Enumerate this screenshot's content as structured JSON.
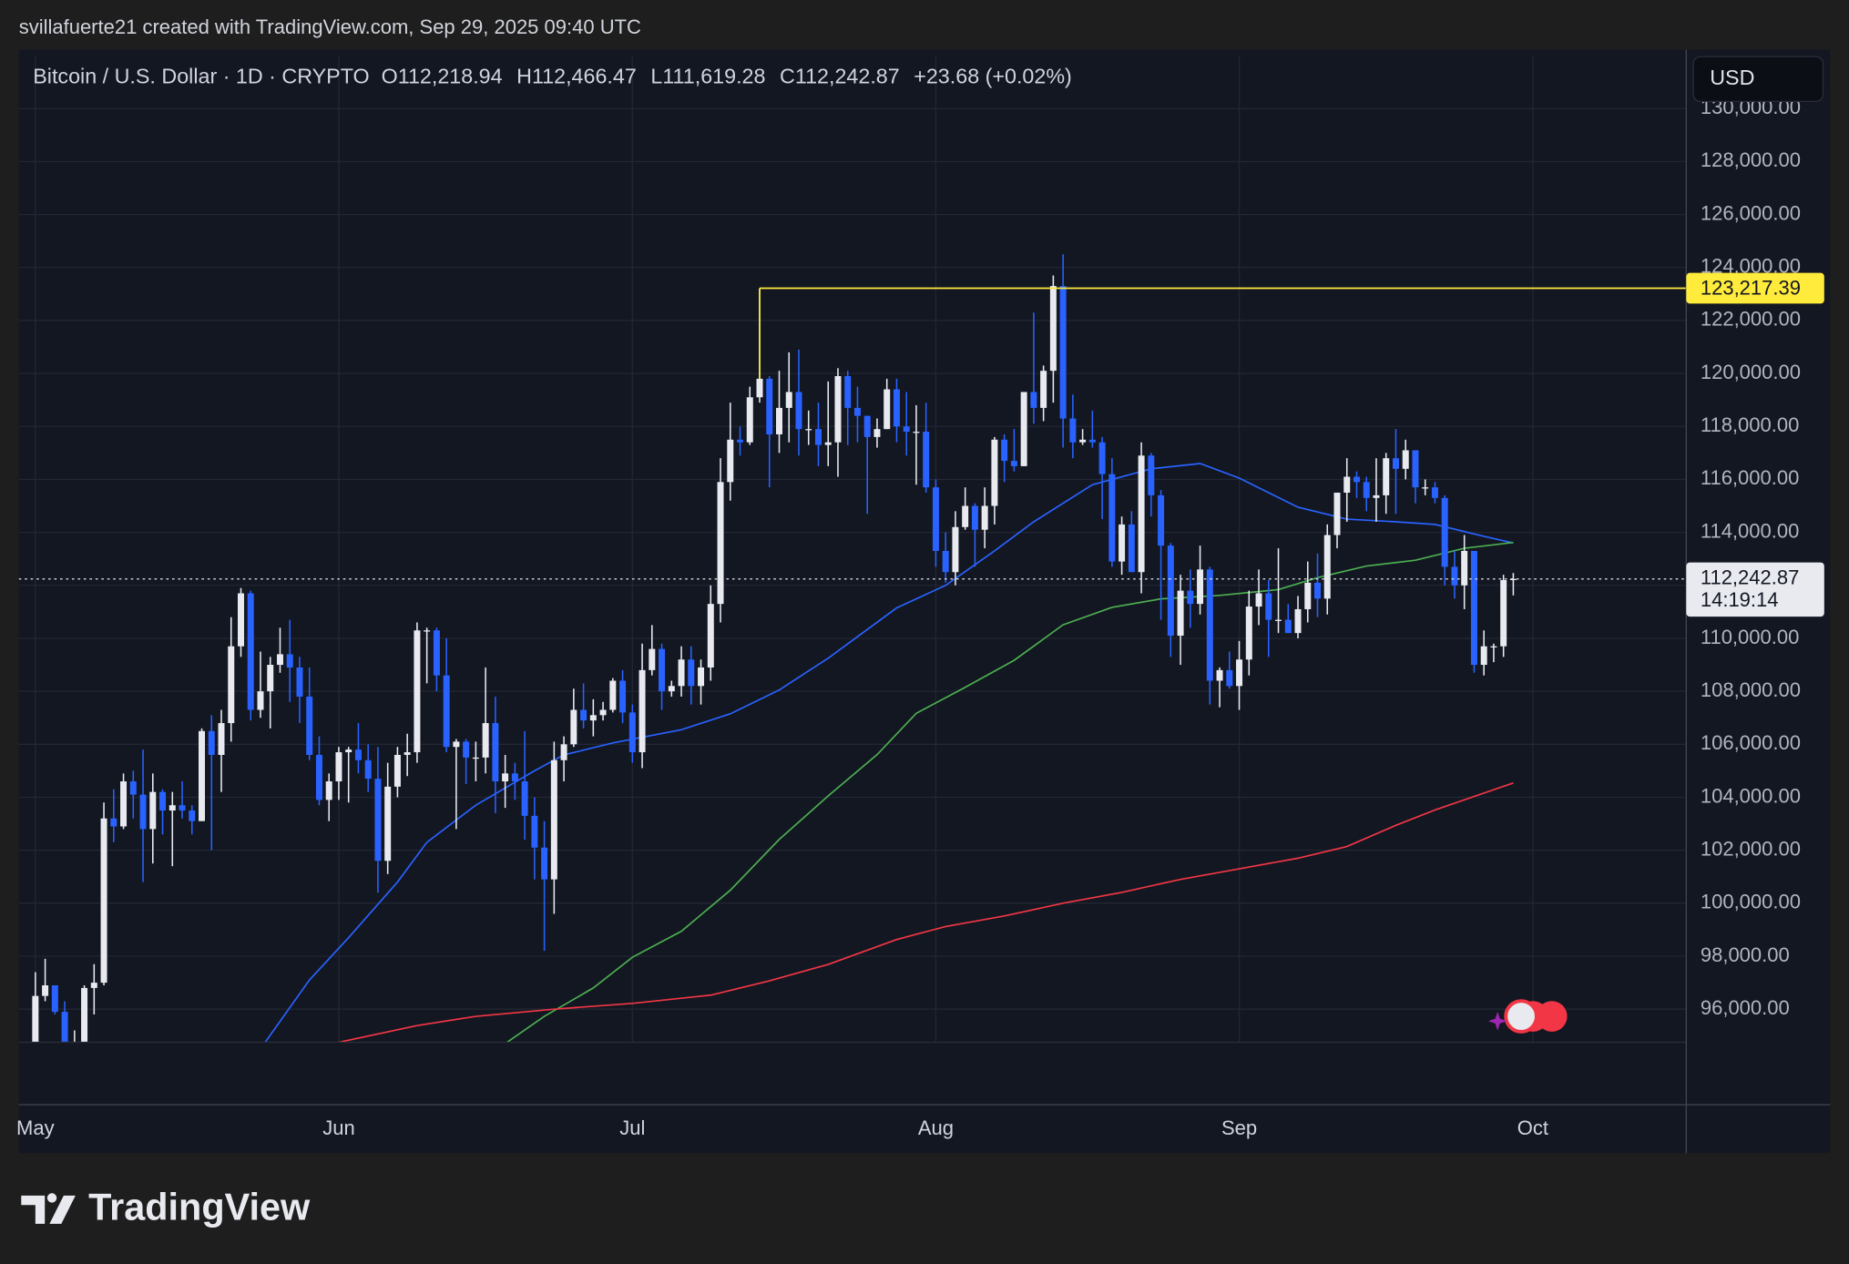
{
  "header": {
    "credit": "svillafuerte21 created with TradingView.com, Sep 29, 2025 09:40 UTC"
  },
  "legend": {
    "symbol": "Bitcoin / U.S. Dollar · 1D · CRYPTO",
    "open": "O112,218.94",
    "high": "H112,466.47",
    "low": "L111,619.28",
    "close": "C112,242.87",
    "change": "+23.68 (+0.02%)"
  },
  "currency_button": "USD",
  "footer": {
    "brand": "TradingView"
  },
  "chart_data": {
    "type": "candlestick",
    "categories": [
      "May",
      null,
      null,
      null,
      null,
      null,
      null,
      null,
      null,
      null,
      null,
      null,
      null,
      null,
      null,
      null,
      null,
      null,
      null,
      null,
      null,
      null,
      null,
      null,
      null,
      null,
      null,
      null,
      null,
      null,
      null,
      "Jun",
      null,
      null,
      null,
      null,
      null,
      null,
      null,
      null,
      null,
      null,
      null,
      null,
      null,
      null,
      null,
      null,
      null,
      null,
      null,
      null,
      null,
      null,
      null,
      null,
      null,
      null,
      null,
      null,
      null,
      "Jul",
      null,
      null,
      null,
      null,
      null,
      null,
      null,
      null,
      null,
      null,
      null,
      null,
      null,
      null,
      null,
      null,
      null,
      null,
      null,
      null,
      null,
      null,
      null,
      null,
      null,
      null,
      null,
      null,
      null,
      null,
      "Aug",
      null,
      null,
      null,
      null,
      null,
      null,
      null,
      null,
      null,
      null,
      null,
      null,
      null,
      null,
      null,
      null,
      null,
      null,
      null,
      null,
      null,
      null,
      null,
      null,
      null,
      null,
      null,
      null,
      null,
      null,
      "Sep",
      null,
      null,
      null,
      null,
      null,
      null,
      null,
      null,
      null,
      null,
      null,
      null,
      null,
      null,
      null,
      null,
      null,
      null,
      null,
      null,
      null,
      null,
      null,
      null,
      null,
      null,
      null,
      null,
      null,
      "Oct"
    ],
    "open": [
      94200,
      96500,
      96900,
      95900,
      94300,
      94700,
      96800,
      97000,
      103200,
      102900,
      104600,
      104100,
      102800,
      104200,
      103500,
      103700,
      103500,
      103100,
      106500,
      105600,
      106800,
      109700,
      111700,
      107300,
      108000,
      109000,
      109400,
      108900,
      107800,
      105600,
      103900,
      104600,
      105700,
      105800,
      105400,
      104700,
      101600,
      104400,
      105600,
      105700,
      110300,
      110300,
      108600,
      105900,
      106100,
      105500,
      105500,
      106800,
      104600,
      104900,
      104600,
      103300,
      102100,
      100900,
      105400,
      106000,
      107300,
      106900,
      107100,
      107300,
      108400,
      107200,
      105700,
      108800,
      109600,
      108000,
      108200,
      109200,
      108200,
      108900,
      111300,
      115900,
      117500,
      117400,
      119100,
      119800,
      117700,
      118700,
      119300,
      117900,
      117900,
      117300,
      117400,
      119900,
      118700,
      118400,
      117600,
      117900,
      119400,
      118000,
      117800,
      117800,
      115700,
      113300,
      112500,
      114200,
      115000,
      114100,
      115000,
      117500,
      116700,
      116500,
      119300,
      118700,
      120100,
      123300,
      118300,
      117400,
      117500,
      117400,
      116200,
      112900,
      114300,
      112500,
      116900,
      115400,
      113500,
      110100,
      111800,
      111300,
      112600,
      108400,
      108800,
      108200,
      109200,
      111200,
      111700,
      110700,
      110700,
      110200,
      111100,
      112100,
      111500,
      113900,
      115500,
      116100,
      115900,
      115300,
      115400,
      116800,
      116400,
      117100,
      115700,
      115700,
      115300,
      112700,
      112000,
      113300,
      109000,
      109700,
      109700,
      112218.94,
      null,
      null
    ],
    "high": [
      97400,
      97900,
      96900,
      96300,
      95200,
      96900,
      97700,
      103800,
      104300,
      104900,
      105000,
      105800,
      104900,
      104300,
      104200,
      104600,
      103700,
      106600,
      107100,
      107300,
      110800,
      111900,
      111800,
      109500,
      109300,
      110400,
      110700,
      109300,
      108900,
      106300,
      104900,
      105900,
      105900,
      106800,
      106000,
      105900,
      105300,
      105900,
      106400,
      110600,
      110400,
      110400,
      110000,
      106200,
      106200,
      106100,
      108900,
      107800,
      105600,
      105300,
      106500,
      104000,
      103100,
      106100,
      106300,
      108100,
      108300,
      107700,
      107600,
      108500,
      108800,
      107500,
      109800,
      110500,
      109800,
      108400,
      109700,
      109700,
      109200,
      112000,
      116800,
      118900,
      118000,
      119500,
      123200,
      119900,
      120100,
      120800,
      120900,
      118600,
      118900,
      119700,
      120200,
      120100,
      119500,
      118400,
      118300,
      119800,
      119800,
      119300,
      118800,
      118900,
      116000,
      114000,
      114800,
      115700,
      115100,
      115700,
      117600,
      117700,
      117900,
      119300,
      122300,
      120300,
      123700,
      124500,
      119200,
      117900,
      118600,
      117600,
      116800,
      114600,
      114800,
      117400,
      117000,
      115600,
      113600,
      112400,
      112600,
      113500,
      112700,
      108900,
      109500,
      109900,
      111800,
      112600,
      112200,
      113400,
      111300,
      111600,
      112900,
      113200,
      114300,
      115500,
      116800,
      116300,
      116100,
      116800,
      117000,
      117900,
      117500,
      117100,
      116000,
      115900,
      115400,
      113300,
      113900,
      113300,
      110300,
      109800,
      112400,
      112466.47,
      null,
      null
    ],
    "low": [
      94100,
      96300,
      95800,
      94200,
      93500,
      93400,
      95800,
      96900,
      102300,
      102800,
      103200,
      100800,
      101500,
      102600,
      101400,
      103200,
      102600,
      103100,
      102000,
      104200,
      106100,
      109300,
      106900,
      107000,
      106600,
      108700,
      107600,
      106800,
      105400,
      103700,
      103100,
      103900,
      103800,
      104900,
      104200,
      100400,
      101100,
      104000,
      104800,
      105300,
      108300,
      108000,
      105700,
      102800,
      104500,
      104600,
      104900,
      103400,
      103600,
      103900,
      102400,
      100900,
      98200,
      99600,
      104600,
      105900,
      106600,
      106300,
      106900,
      107200,
      106800,
      105300,
      105100,
      108600,
      107300,
      107800,
      107800,
      107500,
      107500,
      108400,
      110600,
      115200,
      116900,
      117300,
      118900,
      115700,
      117000,
      117400,
      116900,
      117300,
      116500,
      116500,
      116100,
      117300,
      117400,
      114700,
      117200,
      117900,
      117400,
      116900,
      115800,
      115500,
      112700,
      112100,
      112000,
      114100,
      112700,
      113400,
      114300,
      115900,
      116300,
      116500,
      118100,
      118200,
      118900,
      117200,
      116800,
      117300,
      117200,
      114500,
      112700,
      112400,
      112600,
      111700,
      114600,
      110700,
      109300,
      109000,
      110400,
      110900,
      107500,
      107400,
      108100,
      107300,
      108600,
      110500,
      109300,
      110200,
      110200,
      110000,
      110600,
      110800,
      110900,
      113400,
      114400,
      115300,
      114800,
      114400,
      114700,
      114700,
      116000,
      115100,
      115400,
      115100,
      112000,
      111500,
      111100,
      108700,
      108600,
      109100,
      109300,
      111619.28,
      null,
      null
    ],
    "close": [
      96500,
      96900,
      95900,
      94300,
      94700,
      96800,
      97000,
      103200,
      102900,
      104600,
      104100,
      102800,
      104200,
      103500,
      103700,
      103500,
      103100,
      106500,
      105600,
      106800,
      109700,
      111700,
      107300,
      108000,
      109000,
      109400,
      108900,
      107800,
      105600,
      103900,
      104600,
      105700,
      105800,
      105400,
      104700,
      101600,
      104400,
      105600,
      105700,
      110300,
      110300,
      108600,
      105900,
      106100,
      105500,
      105500,
      106800,
      104600,
      104900,
      104600,
      103300,
      102100,
      100900,
      105400,
      106000,
      107300,
      106900,
      107100,
      107300,
      108400,
      107200,
      105700,
      108800,
      109600,
      108000,
      108200,
      109200,
      108200,
      108900,
      111300,
      115900,
      117500,
      117400,
      119100,
      119800,
      117700,
      118700,
      119300,
      117900,
      117900,
      117300,
      117400,
      119900,
      118700,
      118400,
      117600,
      117900,
      119400,
      118000,
      117800,
      117800,
      115700,
      113300,
      112500,
      114200,
      115000,
      114100,
      115000,
      117500,
      116700,
      116500,
      119300,
      118700,
      120100,
      123300,
      118300,
      117400,
      117500,
      117400,
      116200,
      112900,
      114300,
      112500,
      116900,
      115400,
      113500,
      110100,
      111800,
      111300,
      112600,
      108400,
      108800,
      108200,
      109200,
      111200,
      111700,
      110700,
      110700,
      110200,
      111100,
      112100,
      111500,
      113900,
      115500,
      116100,
      115900,
      115300,
      115400,
      116800,
      116400,
      117100,
      115700,
      115700,
      115300,
      112700,
      112000,
      113300,
      109000,
      109700,
      109700,
      112200,
      112242.87,
      null,
      null
    ],
    "up_color": "#e8eaf0",
    "down_color": "#2962ff",
    "ylim": [
      94750,
      131960
    ],
    "yticks": [
      {
        "value": 96000,
        "label": "96,000.00"
      },
      {
        "value": 98000,
        "label": "98,000.00"
      },
      {
        "value": 100000,
        "label": "100,000.00"
      },
      {
        "value": 102000,
        "label": "102,000.00"
      },
      {
        "value": 104000,
        "label": "104,000.00"
      },
      {
        "value": 106000,
        "label": "106,000.00"
      },
      {
        "value": 108000,
        "label": "108,000.00"
      },
      {
        "value": 110000,
        "label": "110,000.00"
      },
      {
        "value": 112000,
        "label": "112,000.00"
      },
      {
        "value": 114000,
        "label": "114,000.00"
      },
      {
        "value": 116000,
        "label": "116,000.00"
      },
      {
        "value": 118000,
        "label": "118,000.00"
      },
      {
        "value": 120000,
        "label": "120,000.00"
      },
      {
        "value": 122000,
        "label": "122,000.00"
      },
      {
        "value": 124000,
        "label": "124,000.00"
      },
      {
        "value": 126000,
        "label": "126,000.00"
      },
      {
        "value": 128000,
        "label": "128,000.00"
      },
      {
        "value": 130000,
        "label": "130,000.00"
      }
    ],
    "grid": true,
    "lines": [
      {
        "color": "#2962ff",
        "x": [
          23,
          28,
          32,
          37,
          40,
          45,
          51,
          54,
          59,
          66,
          71,
          76,
          81,
          88,
          93,
          98,
          102,
          108,
          114,
          119,
          123,
          129,
          134,
          139,
          143,
          148,
          151
        ],
        "values": [
          94500,
          97100,
          98700,
          100800,
          102300,
          103700,
          105000,
          105600,
          106050,
          106550,
          107150,
          108050,
          109250,
          111150,
          112000,
          113300,
          114400,
          115800,
          116400,
          116600,
          116050,
          114950,
          114500,
          114400,
          114300,
          113850,
          113600
        ]
      },
      {
        "color": "#4caf50",
        "x": [
          48,
          52,
          57,
          61,
          66,
          71,
          76,
          81,
          86,
          90,
          95,
          100,
          105,
          110,
          115,
          121,
          127,
          131,
          136,
          141,
          146,
          151
        ],
        "values": [
          94700,
          95730,
          96800,
          97960,
          98940,
          100490,
          102410,
          104050,
          105610,
          107170,
          108150,
          109170,
          110510,
          111170,
          111490,
          111620,
          111840,
          112290,
          112730,
          112950,
          113400,
          113620
        ]
      },
      {
        "color": "#f23645",
        "x": [
          31,
          39,
          45,
          53,
          61,
          69,
          75,
          81,
          88,
          93,
          99,
          105,
          111,
          117,
          123,
          129,
          134,
          139,
          143,
          151
        ],
        "values": [
          94750,
          95380,
          95730,
          96000,
          96220,
          96530,
          97070,
          97690,
          98630,
          99120,
          99520,
          100000,
          100410,
          100900,
          101300,
          101700,
          102140,
          102940,
          103520,
          104540
        ]
      }
    ],
    "price_lines": [
      {
        "value": 123217.39,
        "label": "123,217.39",
        "color": "#ffeb3b",
        "x": 74
      },
      {
        "value": 112242.87,
        "label": "112,242.87",
        "color": "#e8eaf0",
        "countdown": "14:19:14"
      }
    ]
  }
}
